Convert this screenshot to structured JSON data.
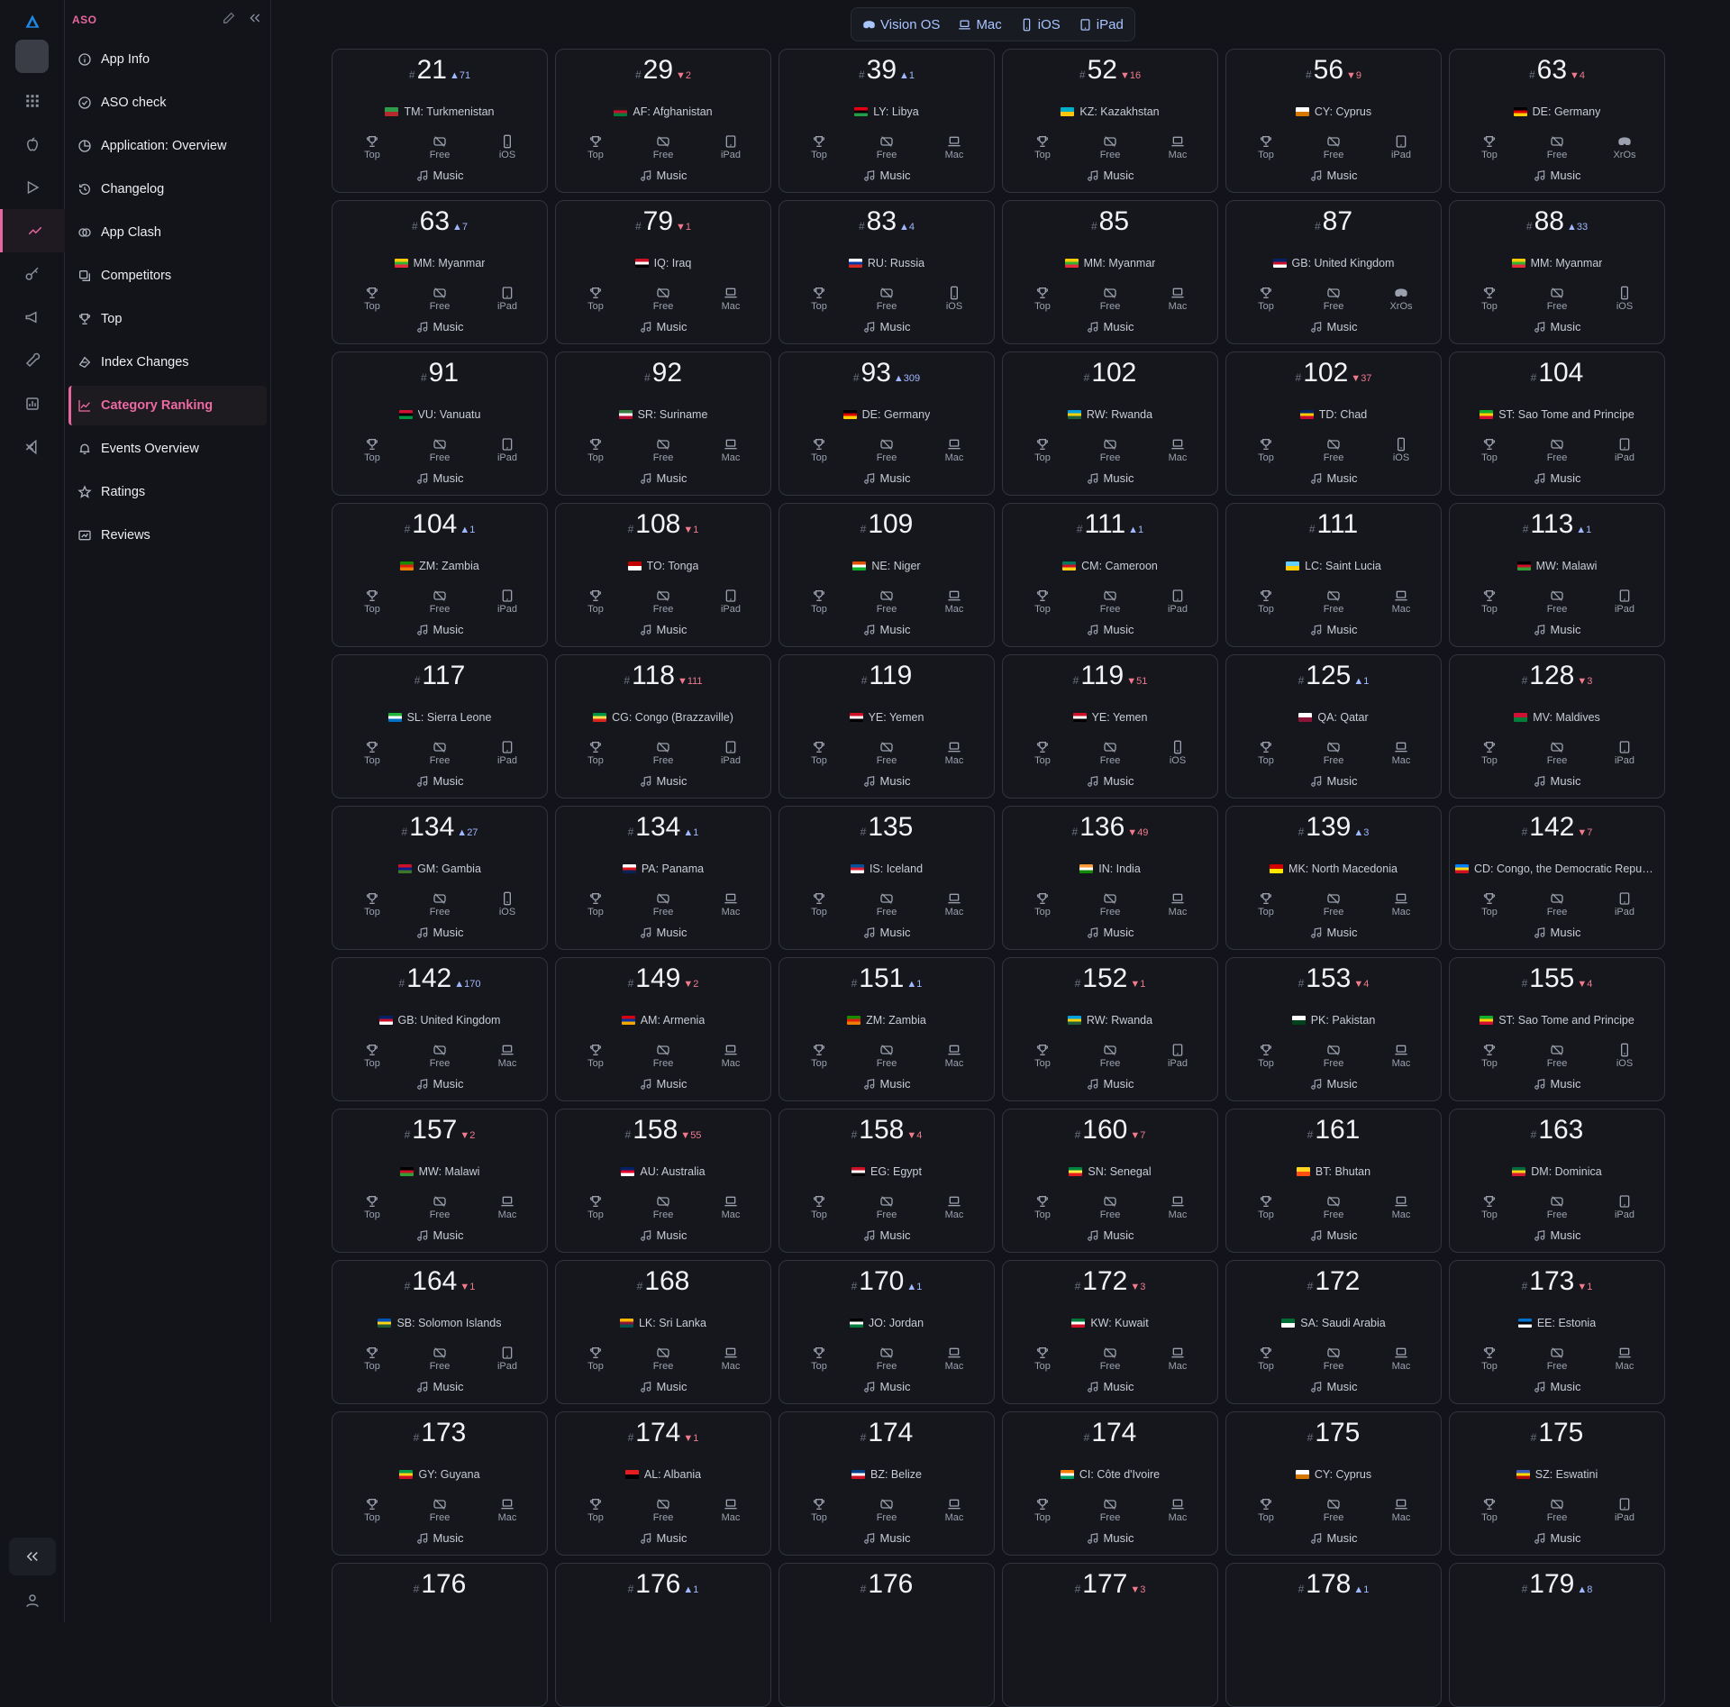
{
  "sidebar": {
    "title": "ASO",
    "items": [
      {
        "label": "App Info",
        "icon": "info-icon"
      },
      {
        "label": "ASO check",
        "icon": "check-circle-icon"
      },
      {
        "label": "Application: Overview",
        "icon": "pie-chart-icon"
      },
      {
        "label": "Changelog",
        "icon": "history-icon"
      },
      {
        "label": "App Clash",
        "icon": "clash-icon"
      },
      {
        "label": "Competitors",
        "icon": "competitors-icon"
      },
      {
        "label": "Top",
        "icon": "trophy-icon"
      },
      {
        "label": "Index Changes",
        "icon": "index-changes-icon"
      },
      {
        "label": "Category Ranking",
        "icon": "chart-line-icon",
        "active": true
      },
      {
        "label": "Events Overview",
        "icon": "bell-icon"
      },
      {
        "label": "Ratings",
        "icon": "star-icon"
      },
      {
        "label": "Reviews",
        "icon": "reviews-icon"
      }
    ]
  },
  "platform_filter": [
    {
      "label": "Vision OS",
      "icon": "vision-icon"
    },
    {
      "label": "Mac",
      "icon": "laptop-icon"
    },
    {
      "label": "iOS",
      "icon": "phone-icon"
    },
    {
      "label": "iPad",
      "icon": "tablet-icon"
    }
  ],
  "card_labels": {
    "top": "Top",
    "free": "Free",
    "genre": "Music"
  },
  "cards": [
    {
      "rank": "21",
      "delta": "71",
      "dir": "up",
      "country": "TM: Turkmenistan",
      "device": "iOS",
      "flag": [
        "#2e9c4a",
        "#b52b2b"
      ]
    },
    {
      "rank": "29",
      "delta": "2",
      "dir": "down",
      "country": "AF: Afghanistan",
      "device": "iPad",
      "flag": [
        "#1a1a1a",
        "#c8102e",
        "#007a36"
      ]
    },
    {
      "rank": "39",
      "delta": "1",
      "dir": "up",
      "country": "LY: Libya",
      "device": "Mac",
      "flag": [
        "#e70013",
        "#000000",
        "#239e46"
      ]
    },
    {
      "rank": "52",
      "delta": "16",
      "dir": "down",
      "country": "KZ: Kazakhstan",
      "device": "Mac",
      "flag": [
        "#00afca",
        "#fec50c"
      ]
    },
    {
      "rank": "56",
      "delta": "9",
      "dir": "down",
      "country": "CY: Cyprus",
      "device": "iPad",
      "flag": [
        "#ffffff",
        "#d57800"
      ]
    },
    {
      "rank": "63",
      "delta": "4",
      "dir": "down",
      "country": "DE: Germany",
      "device": "XrOs",
      "flag": [
        "#000000",
        "#dd0000",
        "#ffce00"
      ]
    },
    {
      "rank": "63",
      "delta": "7",
      "dir": "up",
      "country": "MM: Myanmar",
      "device": "iPad",
      "flag": [
        "#fecb00",
        "#34b233",
        "#ea2839"
      ]
    },
    {
      "rank": "79",
      "delta": "1",
      "dir": "down",
      "country": "IQ: Iraq",
      "device": "Mac",
      "flag": [
        "#ce1126",
        "#ffffff",
        "#000000"
      ]
    },
    {
      "rank": "83",
      "delta": "4",
      "dir": "up",
      "country": "RU: Russia",
      "device": "iOS",
      "flag": [
        "#ffffff",
        "#0039a6",
        "#d52b1e"
      ]
    },
    {
      "rank": "85",
      "delta": "",
      "dir": "",
      "country": "MM: Myanmar",
      "device": "Mac",
      "flag": [
        "#fecb00",
        "#34b233",
        "#ea2839"
      ]
    },
    {
      "rank": "87",
      "delta": "",
      "dir": "",
      "country": "GB: United Kingdom",
      "device": "XrOs",
      "flag": [
        "#012169",
        "#c8102e",
        "#ffffff"
      ]
    },
    {
      "rank": "88",
      "delta": "33",
      "dir": "up",
      "country": "MM: Myanmar",
      "device": "iOS",
      "flag": [
        "#fecb00",
        "#34b233",
        "#ea2839"
      ]
    },
    {
      "rank": "91",
      "delta": "",
      "dir": "",
      "country": "VU: Vanuatu",
      "device": "iPad",
      "flag": [
        "#d21034",
        "#000000",
        "#009543"
      ]
    },
    {
      "rank": "92",
      "delta": "",
      "dir": "",
      "country": "SR: Suriname",
      "device": "Mac",
      "flag": [
        "#377e3f",
        "#ffffff",
        "#b40a2d"
      ]
    },
    {
      "rank": "93",
      "delta": "309",
      "dir": "up",
      "country": "DE: Germany",
      "device": "Mac",
      "flag": [
        "#000000",
        "#dd0000",
        "#ffce00"
      ]
    },
    {
      "rank": "102",
      "delta": "",
      "dir": "",
      "country": "RW: Rwanda",
      "device": "Mac",
      "flag": [
        "#00a1de",
        "#fad201",
        "#20603d"
      ]
    },
    {
      "rank": "102",
      "delta": "37",
      "dir": "down",
      "country": "TD: Chad",
      "device": "iOS",
      "flag": [
        "#002664",
        "#fecb00",
        "#c60c30"
      ]
    },
    {
      "rank": "104",
      "delta": "",
      "dir": "",
      "country": "ST: Sao Tome and Principe",
      "device": "iPad",
      "flag": [
        "#12ad2b",
        "#ffce00",
        "#d21034"
      ]
    },
    {
      "rank": "104",
      "delta": "1",
      "dir": "up",
      "country": "ZM: Zambia",
      "device": "iPad",
      "flag": [
        "#198a00",
        "#de2010",
        "#ef7d00"
      ]
    },
    {
      "rank": "108",
      "delta": "1",
      "dir": "down",
      "country": "TO: Tonga",
      "device": "iPad",
      "flag": [
        "#c10000",
        "#ffffff"
      ]
    },
    {
      "rank": "109",
      "delta": "",
      "dir": "",
      "country": "NE: Niger",
      "device": "Mac",
      "flag": [
        "#e05206",
        "#ffffff",
        "#0db02b"
      ]
    },
    {
      "rank": "111",
      "delta": "1",
      "dir": "up",
      "country": "CM: Cameroon",
      "device": "iPad",
      "flag": [
        "#007a5e",
        "#ce1126",
        "#fcd116"
      ]
    },
    {
      "rank": "111",
      "delta": "",
      "dir": "",
      "country": "LC: Saint Lucia",
      "device": "Mac",
      "flag": [
        "#65cfff",
        "#ffce00"
      ]
    },
    {
      "rank": "113",
      "delta": "1",
      "dir": "up",
      "country": "MW: Malawi",
      "device": "iPad",
      "flag": [
        "#000000",
        "#ce1126",
        "#339e35"
      ]
    },
    {
      "rank": "117",
      "delta": "",
      "dir": "",
      "country": "SL: Sierra Leone",
      "device": "iPad",
      "flag": [
        "#1eb53a",
        "#ffffff",
        "#0072c6"
      ]
    },
    {
      "rank": "118",
      "delta": "111",
      "dir": "down",
      "country": "CG: Congo (Brazzaville)",
      "device": "iPad",
      "flag": [
        "#009543",
        "#fbde4a",
        "#dc241f"
      ]
    },
    {
      "rank": "119",
      "delta": "",
      "dir": "",
      "country": "YE: Yemen",
      "device": "Mac",
      "flag": [
        "#ce1126",
        "#ffffff",
        "#000000"
      ]
    },
    {
      "rank": "119",
      "delta": "51",
      "dir": "down",
      "country": "YE: Yemen",
      "device": "iOS",
      "flag": [
        "#ce1126",
        "#ffffff",
        "#000000"
      ]
    },
    {
      "rank": "125",
      "delta": "1",
      "dir": "up",
      "country": "QA: Qatar",
      "device": "Mac",
      "flag": [
        "#ffffff",
        "#8a1538"
      ]
    },
    {
      "rank": "128",
      "delta": "3",
      "dir": "down",
      "country": "MV: Maldives",
      "device": "iPad",
      "flag": [
        "#d21034",
        "#007e3a"
      ]
    },
    {
      "rank": "134",
      "delta": "27",
      "dir": "up",
      "country": "GM: Gambia",
      "device": "iOS",
      "flag": [
        "#ce1126",
        "#0c1c8c",
        "#3a7728"
      ]
    },
    {
      "rank": "134",
      "delta": "1",
      "dir": "up",
      "country": "PA: Panama",
      "device": "Mac",
      "flag": [
        "#ffffff",
        "#da121a",
        "#072357"
      ]
    },
    {
      "rank": "135",
      "delta": "",
      "dir": "",
      "country": "IS: Iceland",
      "device": "Mac",
      "flag": [
        "#02529c",
        "#dc1e35",
        "#ffffff"
      ]
    },
    {
      "rank": "136",
      "delta": "49",
      "dir": "down",
      "country": "IN: India",
      "device": "Mac",
      "flag": [
        "#ff9933",
        "#ffffff",
        "#138808"
      ]
    },
    {
      "rank": "139",
      "delta": "3",
      "dir": "up",
      "country": "MK: North Macedonia",
      "device": "Mac",
      "flag": [
        "#d20000",
        "#ffe600"
      ]
    },
    {
      "rank": "142",
      "delta": "7",
      "dir": "down",
      "country": "CD: Congo, the Democratic Republic of the",
      "device": "iPad",
      "flag": [
        "#007fff",
        "#f7d618",
        "#ce1021"
      ]
    },
    {
      "rank": "142",
      "delta": "170",
      "dir": "up",
      "country": "GB: United Kingdom",
      "device": "Mac",
      "flag": [
        "#012169",
        "#c8102e",
        "#ffffff"
      ]
    },
    {
      "rank": "149",
      "delta": "2",
      "dir": "down",
      "country": "AM: Armenia",
      "device": "Mac",
      "flag": [
        "#d90012",
        "#0033a0",
        "#f2a800"
      ]
    },
    {
      "rank": "151",
      "delta": "1",
      "dir": "up",
      "country": "ZM: Zambia",
      "device": "Mac",
      "flag": [
        "#198a00",
        "#de2010",
        "#ef7d00"
      ]
    },
    {
      "rank": "152",
      "delta": "1",
      "dir": "down",
      "country": "RW: Rwanda",
      "device": "iPad",
      "flag": [
        "#00a1de",
        "#fad201",
        "#20603d"
      ]
    },
    {
      "rank": "153",
      "delta": "4",
      "dir": "down",
      "country": "PK: Pakistan",
      "device": "Mac",
      "flag": [
        "#ffffff",
        "#01411c"
      ]
    },
    {
      "rank": "155",
      "delta": "4",
      "dir": "down",
      "country": "ST: Sao Tome and Principe",
      "device": "iOS",
      "flag": [
        "#12ad2b",
        "#ffce00",
        "#d21034"
      ]
    },
    {
      "rank": "157",
      "delta": "2",
      "dir": "down",
      "country": "MW: Malawi",
      "device": "Mac",
      "flag": [
        "#000000",
        "#ce1126",
        "#339e35"
      ]
    },
    {
      "rank": "158",
      "delta": "55",
      "dir": "down",
      "country": "AU: Australia",
      "device": "Mac",
      "flag": [
        "#012169",
        "#e4002b",
        "#ffffff"
      ]
    },
    {
      "rank": "158",
      "delta": "4",
      "dir": "down",
      "country": "EG: Egypt",
      "device": "Mac",
      "flag": [
        "#ce1126",
        "#ffffff",
        "#000000"
      ]
    },
    {
      "rank": "160",
      "delta": "7",
      "dir": "down",
      "country": "SN: Senegal",
      "device": "Mac",
      "flag": [
        "#00853f",
        "#fdef42",
        "#e31b23"
      ]
    },
    {
      "rank": "161",
      "delta": "",
      "dir": "",
      "country": "BT: Bhutan",
      "device": "Mac",
      "flag": [
        "#ffd520",
        "#ff4e12"
      ]
    },
    {
      "rank": "163",
      "delta": "",
      "dir": "",
      "country": "DM: Dominica",
      "device": "iPad",
      "flag": [
        "#006b3f",
        "#fcd116",
        "#d41c30"
      ]
    },
    {
      "rank": "164",
      "delta": "1",
      "dir": "down",
      "country": "SB: Solomon Islands",
      "device": "iPad",
      "flag": [
        "#0051ba",
        "#fcd116",
        "#215b33"
      ]
    },
    {
      "rank": "168",
      "delta": "",
      "dir": "",
      "country": "LK: Sri Lanka",
      "device": "Mac",
      "flag": [
        "#ffb700",
        "#8d153a",
        "#00534e"
      ]
    },
    {
      "rank": "170",
      "delta": "1",
      "dir": "up",
      "country": "JO: Jordan",
      "device": "Mac",
      "flag": [
        "#000000",
        "#ffffff",
        "#007a3d"
      ]
    },
    {
      "rank": "172",
      "delta": "3",
      "dir": "down",
      "country": "KW: Kuwait",
      "device": "Mac",
      "flag": [
        "#007a3d",
        "#ffffff",
        "#ce1126"
      ]
    },
    {
      "rank": "172",
      "delta": "",
      "dir": "",
      "country": "SA: Saudi Arabia",
      "device": "Mac",
      "flag": [
        "#006c35",
        "#ffffff"
      ]
    },
    {
      "rank": "173",
      "delta": "1",
      "dir": "down",
      "country": "EE: Estonia",
      "device": "Mac",
      "flag": [
        "#0072ce",
        "#000000",
        "#ffffff"
      ]
    },
    {
      "rank": "173",
      "delta": "",
      "dir": "",
      "country": "GY: Guyana",
      "device": "Mac",
      "flag": [
        "#009e49",
        "#fcd116",
        "#ce1126"
      ]
    },
    {
      "rank": "174",
      "delta": "1",
      "dir": "down",
      "country": "AL: Albania",
      "device": "Mac",
      "flag": [
        "#e41e20",
        "#000000"
      ]
    },
    {
      "rank": "174",
      "delta": "",
      "dir": "",
      "country": "BZ: Belize",
      "device": "Mac",
      "flag": [
        "#003f87",
        "#ffffff",
        "#ce1126"
      ]
    },
    {
      "rank": "174",
      "delta": "",
      "dir": "",
      "country": "CI: Côte d'Ivoire",
      "device": "Mac",
      "flag": [
        "#f77f00",
        "#ffffff",
        "#009e60"
      ]
    },
    {
      "rank": "175",
      "delta": "",
      "dir": "",
      "country": "CY: Cyprus",
      "device": "Mac",
      "flag": [
        "#ffffff",
        "#d57800"
      ]
    },
    {
      "rank": "175",
      "delta": "",
      "dir": "",
      "country": "SZ: Eswatini",
      "device": "iPad",
      "flag": [
        "#3e5eb9",
        "#ffd900",
        "#b10c0c"
      ]
    },
    {
      "rank": "176",
      "delta": "",
      "dir": "",
      "country": "",
      "device": "",
      "flag": []
    },
    {
      "rank": "176",
      "delta": "1",
      "dir": "up",
      "country": "",
      "device": "",
      "flag": []
    },
    {
      "rank": "176",
      "delta": "",
      "dir": "",
      "country": "",
      "device": "",
      "flag": []
    },
    {
      "rank": "177",
      "delta": "3",
      "dir": "down",
      "country": "",
      "device": "",
      "flag": []
    },
    {
      "rank": "178",
      "delta": "1",
      "dir": "up",
      "country": "",
      "device": "",
      "flag": []
    },
    {
      "rank": "179",
      "delta": "8",
      "dir": "up",
      "country": "",
      "device": "",
      "flag": []
    }
  ],
  "colors": {
    "accent": "#e5679d",
    "up": "#9fb8ff",
    "down": "#f07a8c",
    "filter_text": "#a9c4ff"
  }
}
